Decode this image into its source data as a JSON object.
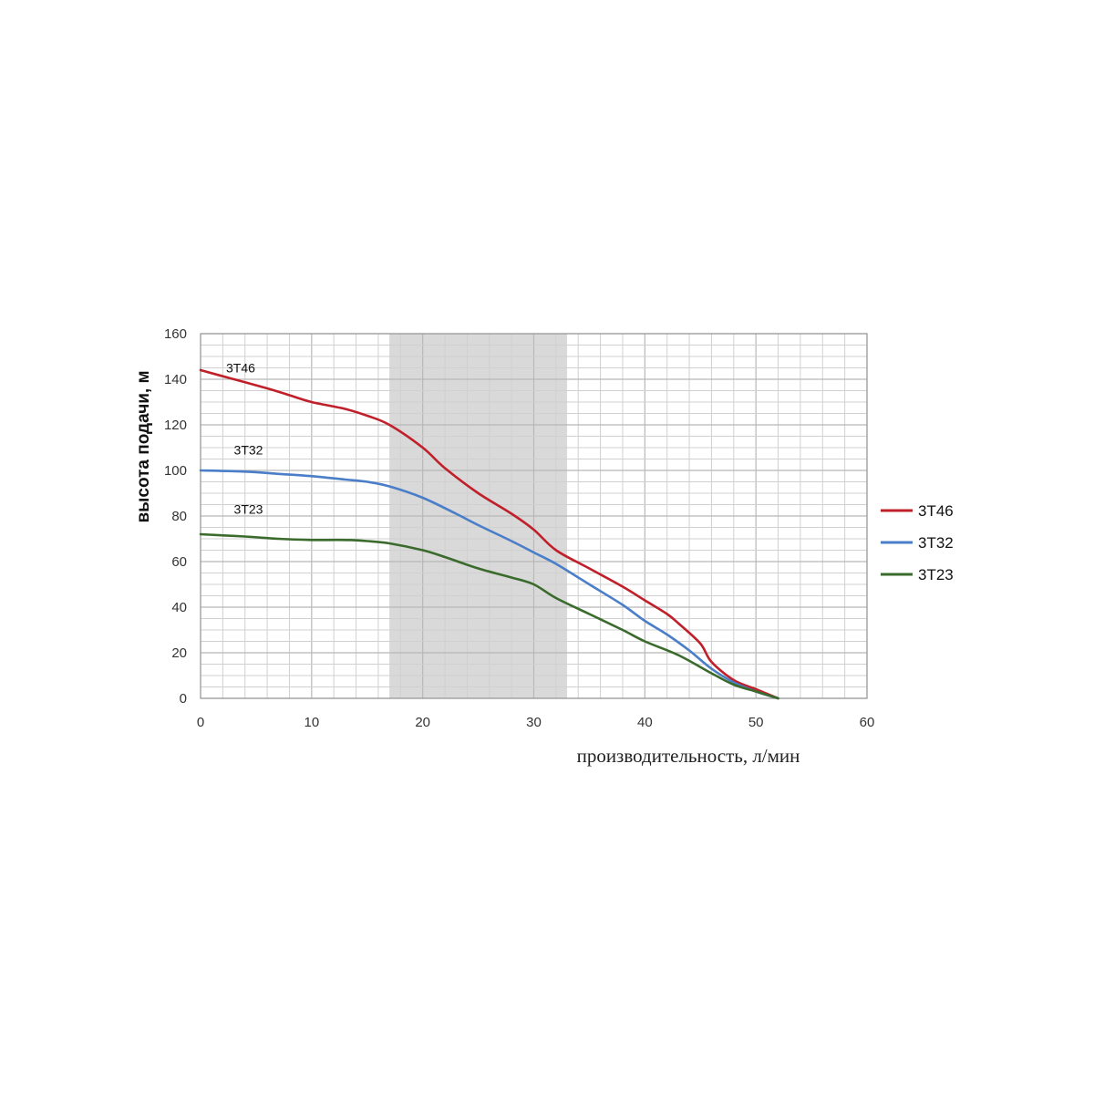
{
  "chart_data": {
    "type": "line",
    "xlabel": "производительность, л/мин",
    "ylabel": "высота подачи, м",
    "xlim": [
      0,
      60
    ],
    "ylim": [
      0,
      160
    ],
    "x_ticks": [
      0,
      10,
      20,
      30,
      40,
      50,
      60
    ],
    "y_ticks": [
      0,
      20,
      40,
      60,
      80,
      100,
      120,
      140,
      160
    ],
    "grid": true,
    "legend_position": "right",
    "highlight_band": {
      "x_range": [
        17,
        33
      ],
      "color": "#d9d9d9"
    },
    "series": [
      {
        "name": "3T46",
        "color": "#c0202a",
        "curve_label": "3T46",
        "points": [
          [
            0,
            144
          ],
          [
            3,
            140
          ],
          [
            6,
            136
          ],
          [
            8,
            133
          ],
          [
            10,
            130
          ],
          [
            13,
            127
          ],
          [
            15,
            124
          ],
          [
            17,
            120
          ],
          [
            20,
            110
          ],
          [
            22,
            101
          ],
          [
            25,
            90
          ],
          [
            28,
            81
          ],
          [
            30,
            74
          ],
          [
            32,
            65
          ],
          [
            35,
            57
          ],
          [
            38,
            49
          ],
          [
            40,
            43
          ],
          [
            42,
            37
          ],
          [
            43,
            33
          ],
          [
            45,
            24
          ],
          [
            46,
            16
          ],
          [
            48,
            8
          ],
          [
            50,
            4
          ],
          [
            52,
            0
          ]
        ],
        "label_at": [
          2.3,
          143
        ]
      },
      {
        "name": "3T32",
        "color": "#4a7ec8",
        "curve_label": "3T32",
        "points": [
          [
            0,
            100
          ],
          [
            4,
            99.5
          ],
          [
            7,
            98.5
          ],
          [
            10,
            97.5
          ],
          [
            13,
            96
          ],
          [
            15,
            95
          ],
          [
            17,
            93
          ],
          [
            20,
            88
          ],
          [
            23,
            81
          ],
          [
            25,
            76
          ],
          [
            28,
            69
          ],
          [
            30,
            64
          ],
          [
            32,
            59
          ],
          [
            35,
            50
          ],
          [
            38,
            41
          ],
          [
            40,
            34
          ],
          [
            42,
            28
          ],
          [
            44,
            21
          ],
          [
            46,
            13
          ],
          [
            48,
            7
          ],
          [
            50,
            3
          ],
          [
            52,
            0
          ]
        ],
        "label_at": [
          3,
          107
        ]
      },
      {
        "name": "3T23",
        "color": "#3a6b2c",
        "curve_label": "3T23",
        "points": [
          [
            0,
            72
          ],
          [
            4,
            71
          ],
          [
            7,
            70
          ],
          [
            10,
            69.5
          ],
          [
            13,
            69.5
          ],
          [
            15,
            69
          ],
          [
            17,
            68
          ],
          [
            20,
            65
          ],
          [
            22,
            62
          ],
          [
            25,
            57
          ],
          [
            28,
            53
          ],
          [
            30,
            50
          ],
          [
            32,
            44
          ],
          [
            35,
            37
          ],
          [
            38,
            30
          ],
          [
            40,
            25
          ],
          [
            43,
            19
          ],
          [
            46,
            11
          ],
          [
            48,
            6
          ],
          [
            50,
            3
          ],
          [
            52,
            0
          ]
        ],
        "label_at": [
          3,
          81
        ]
      }
    ]
  }
}
